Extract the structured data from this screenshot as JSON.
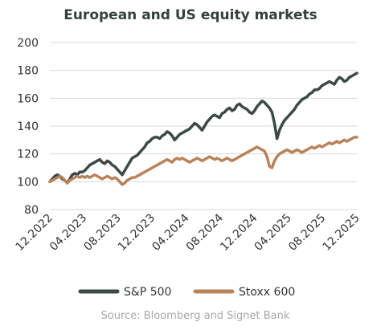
{
  "chart_data": {
    "type": "line",
    "title": "European and US equity markets",
    "source": "Source: Bloomberg and Signet Bank",
    "ylim": [
      80,
      200
    ],
    "yticks": [
      "80",
      "100",
      "120",
      "140",
      "160",
      "180",
      "200"
    ],
    "xtick_labels": [
      "12.2022",
      "04.2023",
      "08.2023",
      "12.2023",
      "04.2024",
      "08.2024",
      "12.2024",
      "04.2025",
      "08.2025",
      "12.2025"
    ],
    "grid": true,
    "legend_position": "bottom",
    "x_start": "12.2022",
    "x_end": "12.2025",
    "series": [
      {
        "name": "S&P 500",
        "color": "#3c4a45",
        "values": [
          100,
          102,
          104,
          105,
          104,
          102,
          101,
          99,
          102,
          105,
          106,
          105,
          107,
          107,
          108,
          110,
          112,
          113,
          114,
          115,
          116,
          114,
          113,
          115,
          114,
          112,
          111,
          109,
          107,
          105,
          108,
          111,
          114,
          117,
          118,
          119,
          121,
          123,
          125,
          128,
          129,
          131,
          132,
          132,
          131,
          133,
          134,
          136,
          135,
          133,
          130,
          132,
          134,
          135,
          136,
          137,
          138,
          140,
          142,
          141,
          139,
          137,
          140,
          143,
          145,
          147,
          148,
          147,
          146,
          149,
          150,
          152,
          153,
          151,
          152,
          155,
          156,
          154,
          153,
          152,
          150,
          149,
          151,
          154,
          156,
          158,
          157,
          155,
          153,
          150,
          142,
          131,
          137,
          141,
          144,
          146,
          148,
          150,
          152,
          155,
          157,
          159,
          160,
          161,
          163,
          164,
          166,
          166,
          167,
          169,
          170,
          171,
          172,
          171,
          170,
          173,
          175,
          174,
          172,
          173,
          175,
          176,
          177,
          178
        ]
      },
      {
        "name": "Stoxx 600",
        "color": "#b9835a",
        "values": [
          100,
          101,
          102,
          103,
          104,
          103,
          101,
          99,
          101,
          102,
          103,
          104,
          103,
          104,
          103,
          104,
          103,
          104,
          105,
          104,
          103,
          102,
          103,
          104,
          103,
          102,
          103,
          102,
          100,
          98,
          99,
          101,
          102,
          103,
          103,
          104,
          105,
          106,
          107,
          108,
          109,
          110,
          111,
          112,
          113,
          114,
          115,
          116,
          115,
          114,
          116,
          117,
          116,
          117,
          116,
          115,
          114,
          115,
          116,
          117,
          116,
          115,
          116,
          117,
          118,
          117,
          116,
          117,
          116,
          115,
          116,
          117,
          116,
          115,
          116,
          117,
          118,
          119,
          120,
          121,
          122,
          123,
          124,
          125,
          124,
          123,
          122,
          118,
          111,
          110,
          115,
          118,
          120,
          121,
          122,
          123,
          122,
          121,
          122,
          123,
          122,
          121,
          122,
          123,
          124,
          125,
          124,
          125,
          126,
          125,
          126,
          127,
          128,
          127,
          128,
          129,
          128,
          129,
          130,
          129,
          130,
          131,
          132,
          132
        ]
      }
    ]
  }
}
